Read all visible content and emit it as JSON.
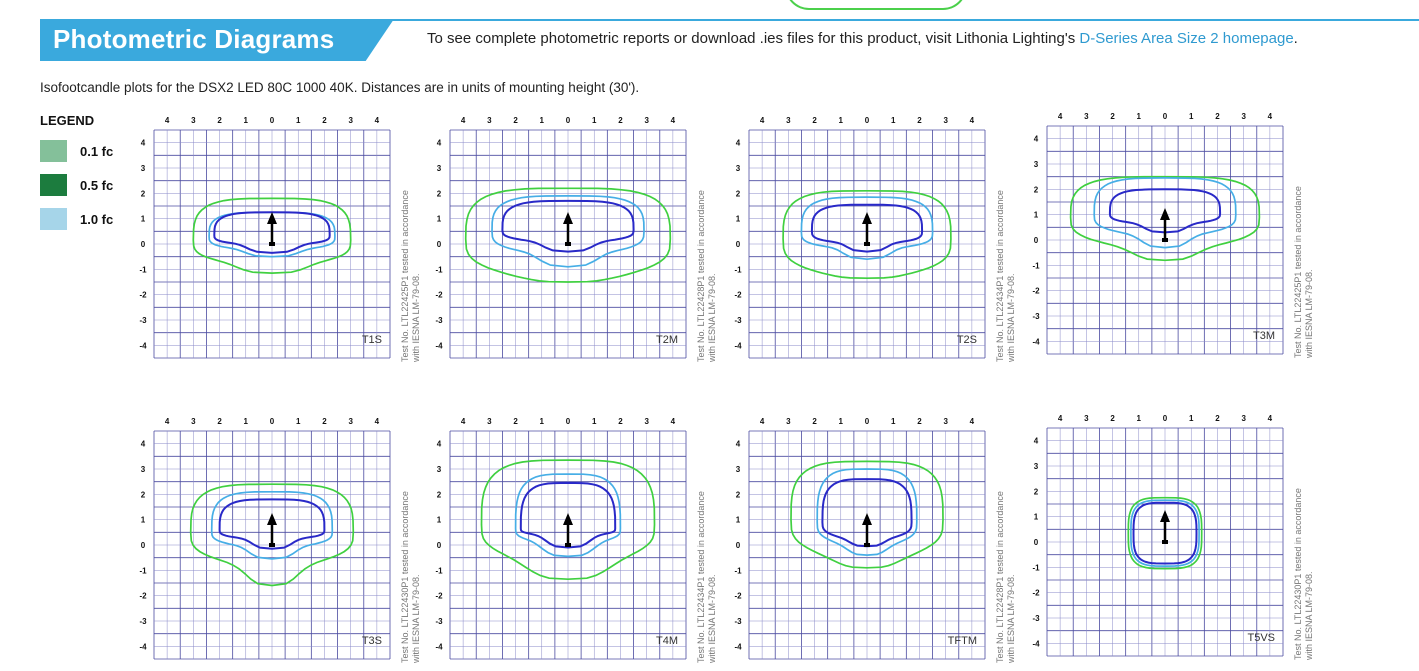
{
  "header": {
    "title": "Photometric Diagrams",
    "note_prefix": "To see complete photometric reports or download .ies files for this product, visit Lithonia Lighting's",
    "note_link": "D-Series Area Size 2 homepage",
    "note_suffix": ".",
    "brand_color": "#3aa9dd",
    "link_color": "#2f9ad0"
  },
  "intro": "Isofootcandle plots for the DSX2 LED 80C 1000 40K. Distances are in units of mounting height (30').",
  "legend": {
    "title": "LEGEND",
    "items": [
      {
        "label": "0.1 fc",
        "color": "#84c09a"
      },
      {
        "label": "0.5 fc",
        "color": "#1c7c3e"
      },
      {
        "label": "1.0 fc",
        "color": "#a6d5e9"
      }
    ]
  },
  "axis_ticks": {
    "top": [
      "4",
      "3",
      "2",
      "1",
      "0",
      "1",
      "2",
      "3",
      "4"
    ],
    "left": [
      "4",
      "3",
      "2",
      "1",
      "0",
      "-1",
      "-2",
      "-3",
      "-4"
    ]
  },
  "diagrams": [
    {
      "name": "T1S",
      "test_note": "Test No. LTL22425P1 tested in accordance with IESNA LM-79-08.",
      "shape": "t1s",
      "isolines": [
        {
          "fc": 0.1,
          "color": "#40d040"
        },
        {
          "fc": 0.5,
          "color": "#46aee6"
        },
        {
          "fc": 1.0,
          "color": "#2929c8"
        }
      ]
    },
    {
      "name": "T2M",
      "test_note": "Test No. LTL22428P1 tested in accordance with IESNA LM-79-08.",
      "shape": "t2m",
      "isolines": [
        {
          "fc": 0.1,
          "color": "#40d040"
        },
        {
          "fc": 0.5,
          "color": "#46aee6"
        },
        {
          "fc": 1.0,
          "color": "#2929c8"
        }
      ]
    },
    {
      "name": "T2S",
      "test_note": "Test No. LTL22434P1 tested in accordance with IESNA LM-79-08.",
      "shape": "t2s",
      "isolines": [
        {
          "fc": 0.1,
          "color": "#40d040"
        },
        {
          "fc": 0.5,
          "color": "#46aee6"
        },
        {
          "fc": 1.0,
          "color": "#2929c8"
        }
      ]
    },
    {
      "name": "T3M",
      "test_note": "Test No. LTL22425P1 tested in accordance with IESNA LM-79-08.",
      "shape": "t3m",
      "isolines": [
        {
          "fc": 0.1,
          "color": "#40d040"
        },
        {
          "fc": 0.5,
          "color": "#46aee6"
        },
        {
          "fc": 1.0,
          "color": "#2929c8"
        }
      ]
    },
    {
      "name": "T3S",
      "test_note": "Test No. LTL22430P1 tested in accordance with IESNA LM-79-08.",
      "shape": "t3s",
      "isolines": [
        {
          "fc": 0.1,
          "color": "#40d040"
        },
        {
          "fc": 0.5,
          "color": "#46aee6"
        },
        {
          "fc": 1.0,
          "color": "#2929c8"
        }
      ]
    },
    {
      "name": "T4M",
      "test_note": "Test No. LTL22434P1 tested in accordance with IESNA LM-79-08.",
      "shape": "t4m",
      "isolines": [
        {
          "fc": 0.1,
          "color": "#40d040"
        },
        {
          "fc": 0.5,
          "color": "#46aee6"
        },
        {
          "fc": 1.0,
          "color": "#2929c8"
        }
      ]
    },
    {
      "name": "TFTM",
      "test_note": "Test No. LTL22428P1 tested in accordance with IESNA LM-79-08.",
      "shape": "tftm",
      "isolines": [
        {
          "fc": 0.1,
          "color": "#40d040"
        },
        {
          "fc": 0.5,
          "color": "#46aee6"
        },
        {
          "fc": 1.0,
          "color": "#2929c8"
        }
      ]
    },
    {
      "name": "T5VS",
      "test_note": "Test No. LTL22430P1 tested in accordance with IESNA LM-79-08.",
      "shape": "t5vs",
      "isolines": [
        {
          "fc": 0.1,
          "color": "#40d040"
        },
        {
          "fc": 0.5,
          "color": "#46aee6"
        },
        {
          "fc": 1.0,
          "color": "#2929c8"
        }
      ]
    }
  ]
}
